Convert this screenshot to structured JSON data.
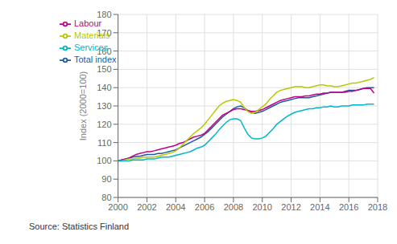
{
  "chart_data": {
    "type": "line",
    "ylabel": "Index (2000=100)",
    "annotations": [
      "Source: Statistics Finland"
    ],
    "x": [
      2000.0,
      2000.25,
      2000.5,
      2000.75,
      2001.0,
      2001.25,
      2001.5,
      2001.75,
      2002.0,
      2002.25,
      2002.5,
      2002.75,
      2003.0,
      2003.25,
      2003.5,
      2003.75,
      2004.0,
      2004.25,
      2004.5,
      2004.75,
      2005.0,
      2005.25,
      2005.5,
      2005.75,
      2006.0,
      2006.25,
      2006.5,
      2006.75,
      2007.0,
      2007.25,
      2007.5,
      2007.75,
      2008.0,
      2008.25,
      2008.5,
      2008.75,
      2009.0,
      2009.25,
      2009.5,
      2009.75,
      2010.0,
      2010.25,
      2010.5,
      2010.75,
      2011.0,
      2011.25,
      2011.5,
      2011.75,
      2012.0,
      2012.25,
      2012.5,
      2012.75,
      2013.0,
      2013.25,
      2013.5,
      2013.75,
      2014.0,
      2014.25,
      2014.5,
      2014.75,
      2015.0,
      2015.25,
      2015.5,
      2015.75,
      2016.0,
      2016.25,
      2016.5,
      2016.75,
      2017.0,
      2017.25,
      2017.5,
      2017.75
    ],
    "series": [
      {
        "name": "Total index",
        "color": "#1f5a9e",
        "values": [
          100.0,
          100.5,
          101.0,
          101.5,
          102.0,
          102.5,
          102.5,
          103.0,
          103.5,
          103.5,
          103.5,
          104.0,
          104.0,
          104.5,
          105.0,
          105.5,
          106.0,
          107.0,
          108.0,
          109.0,
          110.0,
          111.0,
          112.0,
          113.0,
          114.5,
          116.0,
          118.0,
          120.0,
          122.0,
          124.0,
          125.5,
          127.0,
          128.5,
          129.5,
          130.0,
          129.0,
          127.5,
          126.5,
          126.0,
          126.5,
          127.0,
          128.0,
          129.0,
          130.0,
          131.0,
          132.0,
          132.5,
          133.0,
          133.5,
          134.0,
          134.5,
          134.5,
          134.5,
          134.5,
          135.0,
          135.5,
          136.0,
          136.5,
          137.0,
          137.5,
          137.5,
          137.5,
          137.5,
          138.0,
          138.5,
          138.5,
          138.5,
          139.0,
          139.5,
          140.0,
          140.0,
          140.0
        ]
      },
      {
        "name": "Labour",
        "color": "#c0008a",
        "values": [
          100.0,
          100.5,
          101.0,
          101.5,
          102.5,
          103.5,
          104.0,
          104.5,
          105.0,
          105.0,
          105.5,
          106.0,
          106.5,
          107.0,
          107.5,
          108.0,
          108.5,
          109.5,
          110.0,
          111.0,
          112.0,
          113.0,
          113.5,
          114.0,
          115.0,
          117.0,
          119.0,
          121.0,
          123.0,
          125.0,
          126.0,
          127.0,
          128.0,
          128.5,
          128.5,
          128.0,
          127.5,
          127.0,
          127.0,
          127.5,
          128.0,
          129.0,
          130.0,
          131.0,
          132.0,
          133.0,
          133.5,
          134.0,
          134.5,
          135.0,
          135.0,
          135.0,
          135.5,
          135.5,
          136.0,
          136.5,
          136.5,
          137.0,
          137.0,
          137.5,
          137.5,
          137.5,
          137.5,
          137.5,
          138.0,
          138.0,
          138.5,
          139.0,
          139.5,
          139.5,
          139.5,
          137.0
        ]
      },
      {
        "name": "Materials",
        "color": "#b8c800",
        "values": [
          100.0,
          100.0,
          100.5,
          101.0,
          101.0,
          101.5,
          101.5,
          102.0,
          102.0,
          102.0,
          102.0,
          102.5,
          103.0,
          103.5,
          104.0,
          104.5,
          105.5,
          107.0,
          109.0,
          111.0,
          113.0,
          115.0,
          116.5,
          118.0,
          120.0,
          122.5,
          125.0,
          127.5,
          130.0,
          131.5,
          132.5,
          133.0,
          133.5,
          133.0,
          132.0,
          129.0,
          127.0,
          126.0,
          126.5,
          128.0,
          129.5,
          131.0,
          133.5,
          135.5,
          137.5,
          138.5,
          139.0,
          139.5,
          140.0,
          140.5,
          140.5,
          140.5,
          140.0,
          140.0,
          140.5,
          141.0,
          141.5,
          141.5,
          141.0,
          141.0,
          140.5,
          140.5,
          141.0,
          141.5,
          142.0,
          142.5,
          142.5,
          143.0,
          143.5,
          144.0,
          144.5,
          145.5
        ]
      },
      {
        "name": "Services",
        "color": "#00b7c7",
        "values": [
          100.0,
          100.0,
          100.0,
          100.0,
          100.5,
          100.5,
          100.5,
          100.5,
          101.0,
          101.0,
          101.0,
          101.5,
          102.0,
          102.0,
          102.0,
          102.5,
          103.0,
          103.5,
          104.0,
          104.5,
          105.0,
          106.0,
          107.0,
          107.5,
          108.5,
          110.5,
          112.5,
          114.5,
          117.0,
          119.0,
          121.0,
          122.5,
          123.0,
          123.0,
          122.0,
          118.0,
          114.5,
          112.5,
          112.0,
          112.0,
          112.5,
          113.5,
          115.5,
          117.5,
          120.0,
          121.5,
          123.0,
          124.5,
          125.5,
          126.5,
          127.0,
          127.5,
          128.0,
          128.5,
          128.5,
          129.0,
          129.0,
          129.5,
          129.5,
          130.0,
          129.5,
          129.5,
          130.0,
          130.0,
          130.0,
          130.5,
          130.5,
          130.5,
          130.5,
          131.0,
          131.0,
          131.0
        ]
      }
    ],
    "xlim": [
      2000,
      2018
    ],
    "xticks": [
      2000,
      2002,
      2004,
      2006,
      2008,
      2010,
      2012,
      2014,
      2016,
      2018
    ],
    "ylim": [
      80,
      180
    ],
    "yticks": [
      80,
      90,
      100,
      110,
      120,
      130,
      140,
      150,
      160,
      170,
      180
    ],
    "grid": true,
    "legend": "upper left"
  }
}
